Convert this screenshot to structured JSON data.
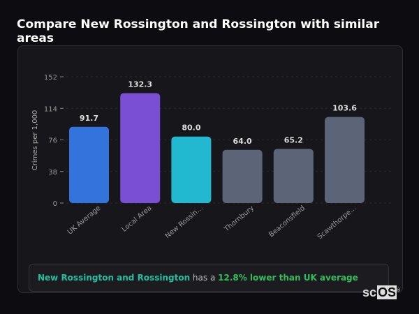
{
  "title": "Compare New Rossington and Rossington with similar areas",
  "chart_data": {
    "type": "bar",
    "ylabel": "Crimes per 1,000",
    "ylim": [
      0,
      152
    ],
    "yticks": [
      0,
      38,
      76,
      114,
      152
    ],
    "categories": [
      "UK Average",
      "Local Area",
      "New Rossin...",
      "Thornbury",
      "Beaconsfield",
      "Scawthorpe..."
    ],
    "values": [
      91.7,
      132.3,
      80.0,
      64.0,
      65.2,
      103.6
    ],
    "value_labels": [
      "91.7",
      "132.3",
      "80.0",
      "64.0",
      "65.2",
      "103.6"
    ],
    "colors": [
      "#3273dc",
      "#7b4fd4",
      "#22b8cf",
      "#5b6577",
      "#5b6577",
      "#5b6577"
    ],
    "grid": true
  },
  "summary": {
    "area": "New Rossington and Rossington",
    "middle": " has a ",
    "result": "12.8% lower than UK average"
  },
  "colors": {
    "area": "#1fc0a0",
    "result": "#2ec05a"
  },
  "logo": {
    "prefix": "sc",
    "box": "OS",
    "mark": "®"
  }
}
